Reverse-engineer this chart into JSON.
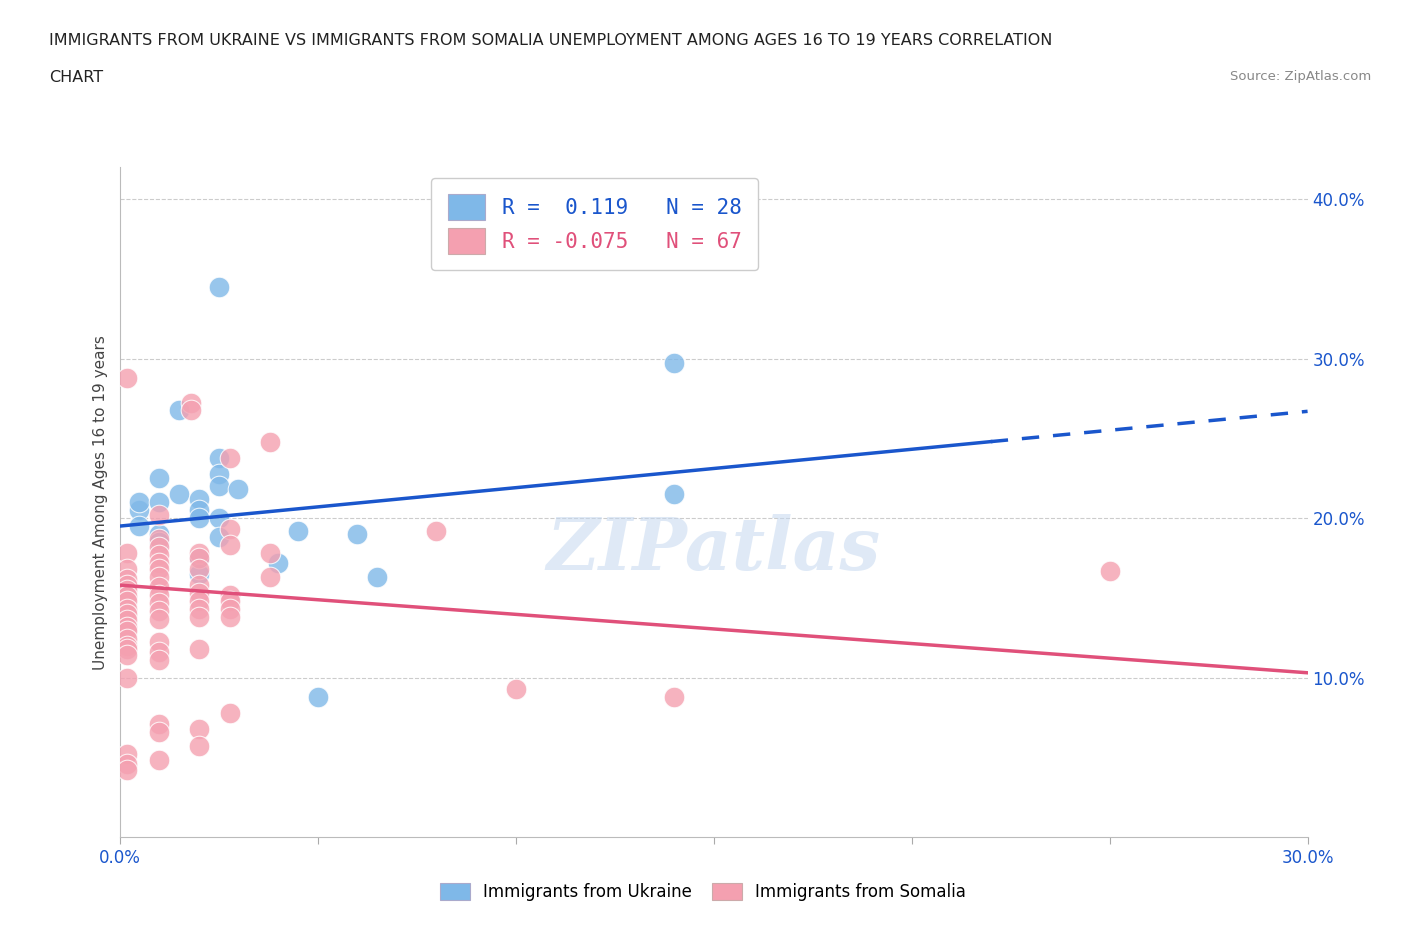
{
  "title_line1": "IMMIGRANTS FROM UKRAINE VS IMMIGRANTS FROM SOMALIA UNEMPLOYMENT AMONG AGES 16 TO 19 YEARS CORRELATION",
  "title_line2": "CHART",
  "source": "Source: ZipAtlas.com",
  "ylabel": "Unemployment Among Ages 16 to 19 years",
  "xlim": [
    0,
    0.3
  ],
  "ylim": [
    0,
    0.42
  ],
  "xtick_labels_shown": [
    0.0,
    0.3
  ],
  "xtick_minor": [
    0.05,
    0.1,
    0.15,
    0.2,
    0.25
  ],
  "yticks_right": [
    0.1,
    0.2,
    0.3,
    0.4
  ],
  "ukraine_R": 0.119,
  "ukraine_N": 28,
  "somalia_R": -0.075,
  "somalia_N": 67,
  "ukraine_color": "#7fb8e8",
  "somalia_color": "#f4a0b0",
  "ukraine_line_color": "#1a56cc",
  "somalia_line_color": "#e0507a",
  "ukraine_scatter": [
    [
      0.005,
      0.205
    ],
    [
      0.005,
      0.195
    ],
    [
      0.005,
      0.21
    ],
    [
      0.01,
      0.225
    ],
    [
      0.01,
      0.19
    ],
    [
      0.01,
      0.185
    ],
    [
      0.01,
      0.21
    ],
    [
      0.015,
      0.268
    ],
    [
      0.015,
      0.215
    ],
    [
      0.02,
      0.212
    ],
    [
      0.02,
      0.205
    ],
    [
      0.02,
      0.2
    ],
    [
      0.02,
      0.175
    ],
    [
      0.02,
      0.165
    ],
    [
      0.025,
      0.238
    ],
    [
      0.025,
      0.228
    ],
    [
      0.025,
      0.22
    ],
    [
      0.025,
      0.2
    ],
    [
      0.025,
      0.188
    ],
    [
      0.03,
      0.218
    ],
    [
      0.04,
      0.172
    ],
    [
      0.045,
      0.192
    ],
    [
      0.05,
      0.088
    ],
    [
      0.06,
      0.19
    ],
    [
      0.065,
      0.163
    ],
    [
      0.14,
      0.215
    ],
    [
      0.14,
      0.297
    ],
    [
      0.025,
      0.345
    ]
  ],
  "somalia_scatter": [
    [
      0.002,
      0.178
    ],
    [
      0.002,
      0.168
    ],
    [
      0.002,
      0.162
    ],
    [
      0.002,
      0.158
    ],
    [
      0.002,
      0.155
    ],
    [
      0.002,
      0.151
    ],
    [
      0.002,
      0.148
    ],
    [
      0.002,
      0.143
    ],
    [
      0.002,
      0.14
    ],
    [
      0.002,
      0.136
    ],
    [
      0.002,
      0.132
    ],
    [
      0.002,
      0.129
    ],
    [
      0.002,
      0.124
    ],
    [
      0.002,
      0.12
    ],
    [
      0.002,
      0.118
    ],
    [
      0.002,
      0.114
    ],
    [
      0.002,
      0.1
    ],
    [
      0.002,
      0.052
    ],
    [
      0.002,
      0.046
    ],
    [
      0.002,
      0.042
    ],
    [
      0.002,
      0.288
    ],
    [
      0.01,
      0.202
    ],
    [
      0.01,
      0.187
    ],
    [
      0.01,
      0.182
    ],
    [
      0.01,
      0.177
    ],
    [
      0.01,
      0.172
    ],
    [
      0.01,
      0.168
    ],
    [
      0.01,
      0.163
    ],
    [
      0.01,
      0.157
    ],
    [
      0.01,
      0.152
    ],
    [
      0.01,
      0.147
    ],
    [
      0.01,
      0.142
    ],
    [
      0.01,
      0.137
    ],
    [
      0.01,
      0.122
    ],
    [
      0.01,
      0.116
    ],
    [
      0.01,
      0.111
    ],
    [
      0.01,
      0.071
    ],
    [
      0.01,
      0.066
    ],
    [
      0.01,
      0.048
    ],
    [
      0.018,
      0.272
    ],
    [
      0.018,
      0.268
    ],
    [
      0.02,
      0.178
    ],
    [
      0.02,
      0.175
    ],
    [
      0.02,
      0.168
    ],
    [
      0.02,
      0.158
    ],
    [
      0.02,
      0.153
    ],
    [
      0.02,
      0.148
    ],
    [
      0.02,
      0.143
    ],
    [
      0.02,
      0.138
    ],
    [
      0.02,
      0.118
    ],
    [
      0.02,
      0.068
    ],
    [
      0.02,
      0.057
    ],
    [
      0.028,
      0.238
    ],
    [
      0.028,
      0.193
    ],
    [
      0.028,
      0.183
    ],
    [
      0.028,
      0.152
    ],
    [
      0.028,
      0.148
    ],
    [
      0.028,
      0.143
    ],
    [
      0.028,
      0.138
    ],
    [
      0.028,
      0.078
    ],
    [
      0.038,
      0.248
    ],
    [
      0.038,
      0.178
    ],
    [
      0.038,
      0.163
    ],
    [
      0.08,
      0.192
    ],
    [
      0.1,
      0.093
    ],
    [
      0.14,
      0.088
    ],
    [
      0.25,
      0.167
    ]
  ],
  "ukraine_trendline_solid": [
    [
      0.0,
      0.195
    ],
    [
      0.22,
      0.248
    ]
  ],
  "ukraine_trendline_dash": [
    [
      0.22,
      0.248
    ],
    [
      0.3,
      0.267
    ]
  ],
  "somalia_trendline": [
    [
      0.0,
      0.158
    ],
    [
      0.3,
      0.103
    ]
  ],
  "watermark": "ZIPatlas",
  "background_color": "#ffffff",
  "gridcolor": "#cccccc"
}
